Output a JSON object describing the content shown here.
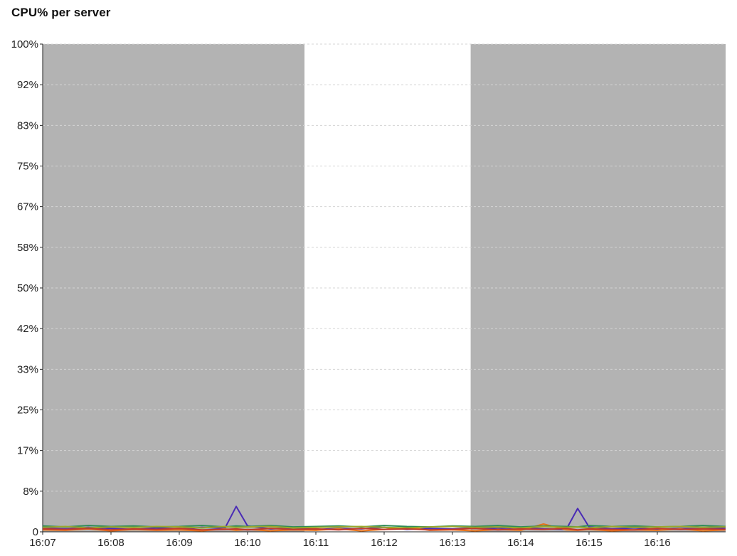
{
  "chart_data": {
    "type": "line",
    "title": "CPU% per server",
    "xlabel": "",
    "ylabel": "",
    "x_tick_labels": [
      "16:07",
      "16:08",
      "16:09",
      "16:10",
      "16:11",
      "16:12",
      "16:13",
      "16:14",
      "16:15",
      "16:16"
    ],
    "x_range_minutes": [
      0,
      10
    ],
    "y_tick_labels": [
      "0",
      "8%",
      "17%",
      "25%",
      "33%",
      "42%",
      "50%",
      "58%",
      "67%",
      "75%",
      "83%",
      "92%",
      "100%"
    ],
    "y_tick_values": [
      0,
      8.33,
      16.67,
      25,
      33.33,
      41.67,
      50,
      58.33,
      66.67,
      75,
      83.33,
      91.67,
      100
    ],
    "ylim": [
      0,
      100
    ],
    "grid": true,
    "legend": "none",
    "shaded_regions": [
      {
        "x_start": "16:07:00",
        "x_end": "16:10:50",
        "color": "#b3b3b3"
      },
      {
        "x_start": "16:13:16",
        "x_end": "16:17:00",
        "color": "#b3b3b3"
      }
    ],
    "x": [
      "16:07:00",
      "16:07:20",
      "16:07:40",
      "16:08:00",
      "16:08:20",
      "16:08:40",
      "16:09:00",
      "16:09:20",
      "16:09:40",
      "16:09:50",
      "16:10:00",
      "16:10:20",
      "16:10:40",
      "16:11:00",
      "16:11:20",
      "16:11:40",
      "16:12:00",
      "16:12:20",
      "16:12:40",
      "16:13:00",
      "16:13:20",
      "16:13:40",
      "16:14:00",
      "16:14:20",
      "16:14:40",
      "16:14:50",
      "16:15:00",
      "16:15:20",
      "16:15:40",
      "16:16:00",
      "16:16:20",
      "16:16:40",
      "16:17:00"
    ],
    "series": [
      {
        "color": "#4a2bb5",
        "values": [
          0.8,
          0.6,
          0.9,
          0.7,
          0.5,
          0.8,
          0.6,
          0.9,
          0.7,
          5.2,
          1.2,
          0.6,
          0.8,
          0.5,
          0.7,
          0.6,
          0.9,
          0.5,
          0.7,
          0.6,
          0.8,
          0.7,
          0.9,
          0.6,
          0.5,
          4.8,
          1.0,
          0.6,
          0.8,
          0.5,
          0.7,
          0.6,
          0.8
        ]
      },
      {
        "color": "#e8731a",
        "values": [
          0.4,
          0.3,
          0.6,
          0.2,
          0.5,
          0.3,
          0.4,
          0.2,
          0.6,
          0.3,
          0.5,
          0.2,
          0.4,
          0.3,
          0.6,
          0.2,
          0.5,
          0.9,
          0.3,
          0.4,
          0.2,
          0.5,
          0.3,
          1.6,
          0.4,
          0.3,
          0.5,
          0.2,
          0.4,
          0.3,
          0.6,
          0.2,
          0.4
        ]
      },
      {
        "color": "#2e8b57",
        "values": [
          1.2,
          1.0,
          1.3,
          1.1,
          1.2,
          1.0,
          1.1,
          1.3,
          1.0,
          1.2,
          1.1,
          1.3,
          1.0,
          1.1,
          1.2,
          1.0,
          1.3,
          1.1,
          1.0,
          1.2,
          1.1,
          1.3,
          1.0,
          1.2,
          1.1,
          1.0,
          1.3,
          1.1,
          1.2,
          1.0,
          1.1,
          1.3,
          1.1
        ]
      },
      {
        "color": "#9aa829",
        "values": [
          0.9,
          1.1,
          0.8,
          1.0,
          0.9,
          1.1,
          1.0,
          0.8,
          1.1,
          0.9,
          1.0,
          1.1,
          0.8,
          0.9,
          1.0,
          1.1,
          0.9,
          0.8,
          1.0,
          1.1,
          0.9,
          1.0,
          0.8,
          1.1,
          0.9,
          1.0,
          0.8,
          1.1,
          0.9,
          1.0,
          1.1,
          0.9,
          1.0
        ]
      },
      {
        "color": "#c0392b",
        "values": [
          0.6,
          0.5,
          0.7,
          0.4,
          0.6,
          0.5,
          0.7,
          0.4,
          0.5,
          0.6,
          0.4,
          0.7,
          0.5,
          0.6,
          0.4,
          0.7,
          0.5,
          0.6,
          0.4,
          0.5,
          0.7,
          0.4,
          0.6,
          0.5,
          0.7,
          0.4,
          0.6,
          0.5,
          0.4,
          0.7,
          0.5,
          0.6,
          0.5
        ]
      }
    ]
  }
}
